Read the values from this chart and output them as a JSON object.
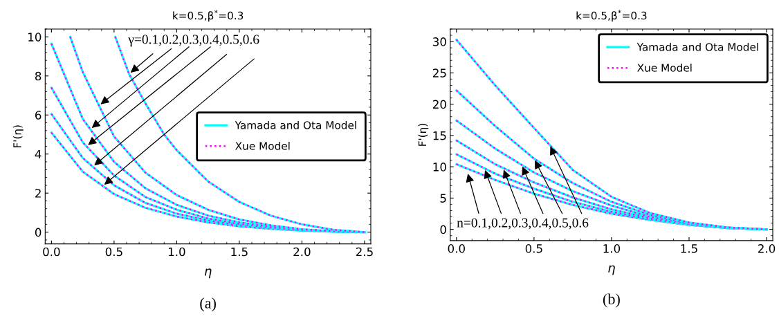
{
  "chart_data": [
    {
      "type": "line",
      "title": "k=0.5,β$^{*}$=0.3",
      "xlabel": "η",
      "ylabel": "F'(η)",
      "xlim": [
        -0.05,
        2.55
      ],
      "ylim": [
        -0.6,
        10.4
      ],
      "xticks": [
        {
          "value": 0,
          "label": "0.0"
        },
        0.5,
        {
          "value": 1,
          "label": "1.0"
        },
        1.5,
        {
          "value": 2,
          "label": "2.0"
        },
        2.5
      ],
      "yticks": [
        0,
        2,
        4,
        6,
        8,
        10
      ],
      "legend": "right",
      "grid": false,
      "x": [
        0,
        0.25,
        0.5,
        0.75,
        1.0,
        1.25,
        1.5,
        1.75,
        2.0,
        2.25,
        2.5
      ],
      "annotations": [
        {
          "text": "γ=0.1,0.2,0.3,0.4,0.5,0.6",
          "x": 0.62,
          "y": 8.1
        },
        "(a)"
      ],
      "series": [
        {
          "name": "Yamada and Ota Model",
          "color": "#00ffff",
          "line_style": "solid",
          "values": [
            5.1,
            3.1,
            1.95,
            1.25,
            0.8,
            0.5,
            0.3,
            0.17,
            0.08,
            0.02,
            0
          ]
        },
        {
          "name": "Xue Model",
          "color": "#ff00ff",
          "line_style": "dotted",
          "values": [
            5.1,
            3.1,
            1.95,
            1.25,
            0.8,
            0.5,
            0.3,
            0.17,
            0.08,
            0.02,
            0
          ]
        },
        {
          "color": "#00ffff",
          "line_style": "solid",
          "values": [
            6.05,
            3.8,
            2.4,
            1.5,
            0.95,
            0.6,
            0.36,
            0.2,
            0.09,
            0.03,
            0
          ]
        },
        {
          "color": "#ff00ff",
          "line_style": "dotted",
          "values": [
            6.05,
            3.8,
            2.4,
            1.5,
            0.95,
            0.6,
            0.36,
            0.2,
            0.09,
            0.03,
            0
          ]
        },
        {
          "color": "#00ffff",
          "line_style": "solid",
          "values": [
            7.4,
            4.6,
            2.9,
            1.8,
            1.15,
            0.7,
            0.42,
            0.23,
            0.1,
            0.03,
            0
          ]
        },
        {
          "color": "#ff00ff",
          "line_style": "dotted",
          "values": [
            7.4,
            4.6,
            2.9,
            1.8,
            1.15,
            0.7,
            0.42,
            0.23,
            0.1,
            0.03,
            0
          ]
        },
        {
          "color": "#00ffff",
          "line_style": "solid",
          "values": [
            9.65,
            5.8,
            3.6,
            2.25,
            1.4,
            0.85,
            0.5,
            0.27,
            0.12,
            0.04,
            0
          ]
        },
        {
          "color": "#ff00ff",
          "line_style": "dotted",
          "values": [
            9.65,
            5.8,
            3.6,
            2.25,
            1.4,
            0.85,
            0.5,
            0.27,
            0.12,
            0.04,
            0
          ]
        },
        {
          "color": "#00ffff",
          "line_style": "solid",
          "x": [
            0.15,
            0.25,
            0.5,
            0.75,
            1.0,
            1.25,
            1.5,
            1.75,
            2.0,
            2.25,
            2.5
          ],
          "values": [
            10,
            8.2,
            4.9,
            3.05,
            1.9,
            1.15,
            0.65,
            0.35,
            0.15,
            0.05,
            0
          ]
        },
        {
          "color": "#ff00ff",
          "line_style": "dotted",
          "x": [
            0.15,
            0.25,
            0.5,
            0.75,
            1.0,
            1.25,
            1.5,
            1.75,
            2.0,
            2.25,
            2.5
          ],
          "values": [
            10,
            8.2,
            4.9,
            3.05,
            1.9,
            1.15,
            0.65,
            0.35,
            0.15,
            0.05,
            0
          ]
        },
        {
          "color": "#00ffff",
          "line_style": "solid",
          "x": [
            0.51,
            0.62,
            0.75,
            0.9,
            1.0,
            1.25,
            1.5,
            1.75,
            2.0,
            2.25,
            2.5
          ],
          "values": [
            10,
            8.1,
            6.6,
            5.0,
            4.2,
            2.6,
            1.55,
            0.85,
            0.4,
            0.12,
            0
          ]
        },
        {
          "color": "#ff00ff",
          "line_style": "dotted",
          "x": [
            0.51,
            0.62,
            0.75,
            0.9,
            1.0,
            1.25,
            1.5,
            1.75,
            2.0,
            2.25,
            2.5
          ],
          "values": [
            10,
            8.1,
            6.6,
            5.0,
            4.2,
            2.6,
            1.55,
            0.85,
            0.4,
            0.12,
            0
          ]
        }
      ]
    },
    {
      "type": "line",
      "title": "k=0.5,β$^{*}$=0.3",
      "xlabel": "η",
      "ylabel": "F'(η)",
      "xlim": [
        -0.04,
        2.04
      ],
      "ylim": [
        -1.8,
        32
      ],
      "xticks": [
        {
          "value": 0,
          "label": "0.0"
        },
        0.5,
        {
          "value": 1,
          "label": "1.0"
        },
        1.5,
        {
          "value": 2,
          "label": "2.0"
        }
      ],
      "yticks": [
        0,
        5,
        10,
        15,
        20,
        25,
        30
      ],
      "legend": "top right",
      "grid": false,
      "x": [
        0,
        0.25,
        0.5,
        0.75,
        1.0,
        1.25,
        1.5,
        1.75,
        2.0
      ],
      "annotations": [
        {
          "text": "n=0.1,0.2,0.3,0.4,0.5,0.6",
          "x": 0.07,
          "y": 9.2
        },
        "(b)"
      ],
      "series": [
        {
          "name": "Yamada and Ota Model",
          "color": "#00ffff",
          "line_style": "solid",
          "values": [
            10.4,
            7.9,
            5.7,
            3.9,
            2.5,
            1.5,
            0.7,
            0.2,
            0
          ]
        },
        {
          "name": "Xue Model",
          "color": "#ff00ff",
          "line_style": "dotted",
          "values": [
            10.4,
            7.9,
            5.7,
            3.9,
            2.5,
            1.5,
            0.7,
            0.2,
            0
          ]
        },
        {
          "color": "#00ffff",
          "line_style": "solid",
          "values": [
            12.0,
            8.9,
            6.5,
            4.4,
            2.8,
            1.6,
            0.8,
            0.2,
            0
          ]
        },
        {
          "color": "#ff00ff",
          "line_style": "dotted",
          "values": [
            12.0,
            8.9,
            6.5,
            4.4,
            2.8,
            1.6,
            0.8,
            0.2,
            0
          ]
        },
        {
          "color": "#00ffff",
          "line_style": "solid",
          "values": [
            14.2,
            10.4,
            7.5,
            5.1,
            3.2,
            1.8,
            0.8,
            0.2,
            0
          ]
        },
        {
          "color": "#ff00ff",
          "line_style": "dotted",
          "values": [
            14.2,
            10.4,
            7.5,
            5.1,
            3.2,
            1.8,
            0.8,
            0.2,
            0
          ]
        },
        {
          "color": "#00ffff",
          "line_style": "solid",
          "values": [
            17.4,
            12.9,
            9.1,
            6.1,
            3.8,
            2.0,
            0.9,
            0.3,
            0
          ]
        },
        {
          "color": "#ff00ff",
          "line_style": "dotted",
          "values": [
            17.4,
            12.9,
            9.1,
            6.1,
            3.8,
            2.0,
            0.9,
            0.3,
            0
          ]
        },
        {
          "color": "#00ffff",
          "line_style": "solid",
          "values": [
            22.2,
            16.5,
            11.3,
            7.4,
            4.4,
            2.3,
            1.0,
            0.3,
            0
          ]
        },
        {
          "color": "#ff00ff",
          "line_style": "dotted",
          "values": [
            22.2,
            16.5,
            11.3,
            7.4,
            4.4,
            2.3,
            1.0,
            0.3,
            0
          ]
        },
        {
          "color": "#00ffff",
          "line_style": "solid",
          "values": [
            30.3,
            23.0,
            16.2,
            9.5,
            5.2,
            2.6,
            1.1,
            0.3,
            0
          ]
        },
        {
          "color": "#ff00ff",
          "line_style": "dotted",
          "values": [
            30.3,
            23.0,
            16.2,
            9.5,
            5.2,
            2.6,
            1.1,
            0.3,
            0
          ]
        }
      ]
    }
  ]
}
